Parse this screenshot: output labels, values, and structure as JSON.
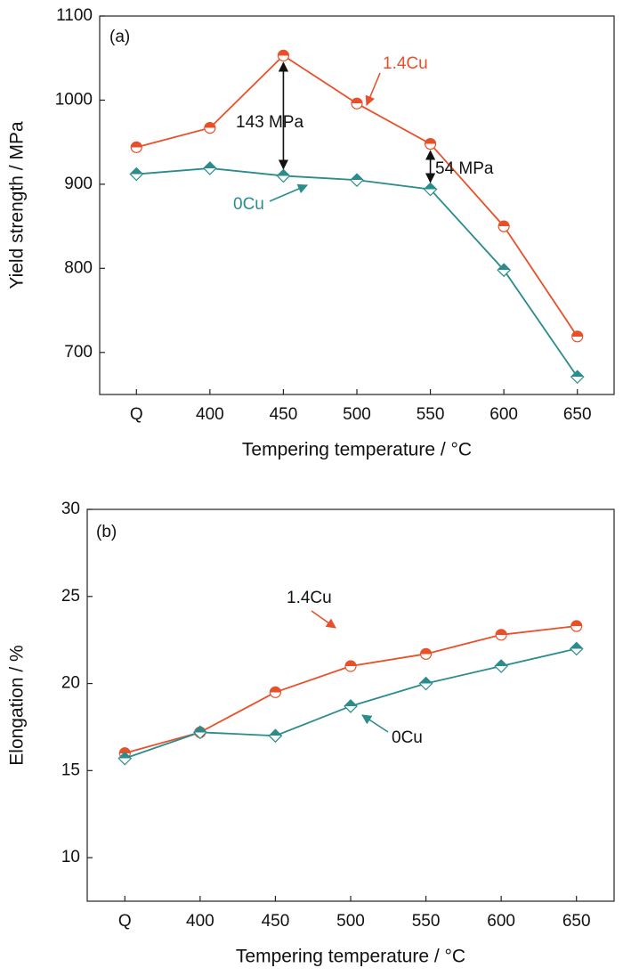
{
  "chart_data": [
    {
      "type": "line",
      "x_label": "Tempering temperature / °C",
      "y_label": "Yield strength / MPa",
      "categories": [
        "Q",
        "400",
        "450",
        "500",
        "550",
        "600",
        "650"
      ],
      "series": [
        {
          "name": "1.4Cu",
          "color": "#e8502a",
          "marker": "circle",
          "values": [
            944,
            967,
            1053,
            996,
            948,
            850,
            719
          ]
        },
        {
          "name": "0Cu",
          "color": "#2a8c8c",
          "marker": "diamond",
          "values": [
            912,
            919,
            910,
            905,
            894,
            798,
            671
          ]
        }
      ],
      "ylim": [
        650,
        1100
      ],
      "yticks": [
        700,
        800,
        900,
        1000,
        1100
      ],
      "annotations": [
        {
          "text": "(a)",
          "color": "#111"
        },
        {
          "text": "143 MPa",
          "color": "#111"
        },
        {
          "text": "54 MPa",
          "color": "#111"
        },
        {
          "text": "1.4Cu",
          "color": "#e8502a"
        },
        {
          "text": "0Cu",
          "color": "#2a8c8c"
        }
      ]
    },
    {
      "type": "line",
      "x_label": "Tempering temperature / °C",
      "y_label": "Elongation / %",
      "categories": [
        "Q",
        "400",
        "450",
        "500",
        "550",
        "600",
        "650"
      ],
      "series": [
        {
          "name": "1.4Cu",
          "color": "#e8502a",
          "marker": "circle",
          "values": [
            16.0,
            17.2,
            19.5,
            21.0,
            21.7,
            22.8,
            23.3
          ]
        },
        {
          "name": "0Cu",
          "color": "#2a8c8c",
          "marker": "diamond",
          "values": [
            15.7,
            17.2,
            17.0,
            18.7,
            20.0,
            21.0,
            22.0
          ]
        }
      ],
      "ylim": [
        7.5,
        30
      ],
      "yticks": [
        10,
        15,
        20,
        25,
        30
      ],
      "annotations": [
        {
          "text": "(b)",
          "color": "#111"
        },
        {
          "text": "1.4Cu",
          "color": "#111"
        },
        {
          "text": "0Cu",
          "color": "#111"
        }
      ]
    }
  ]
}
